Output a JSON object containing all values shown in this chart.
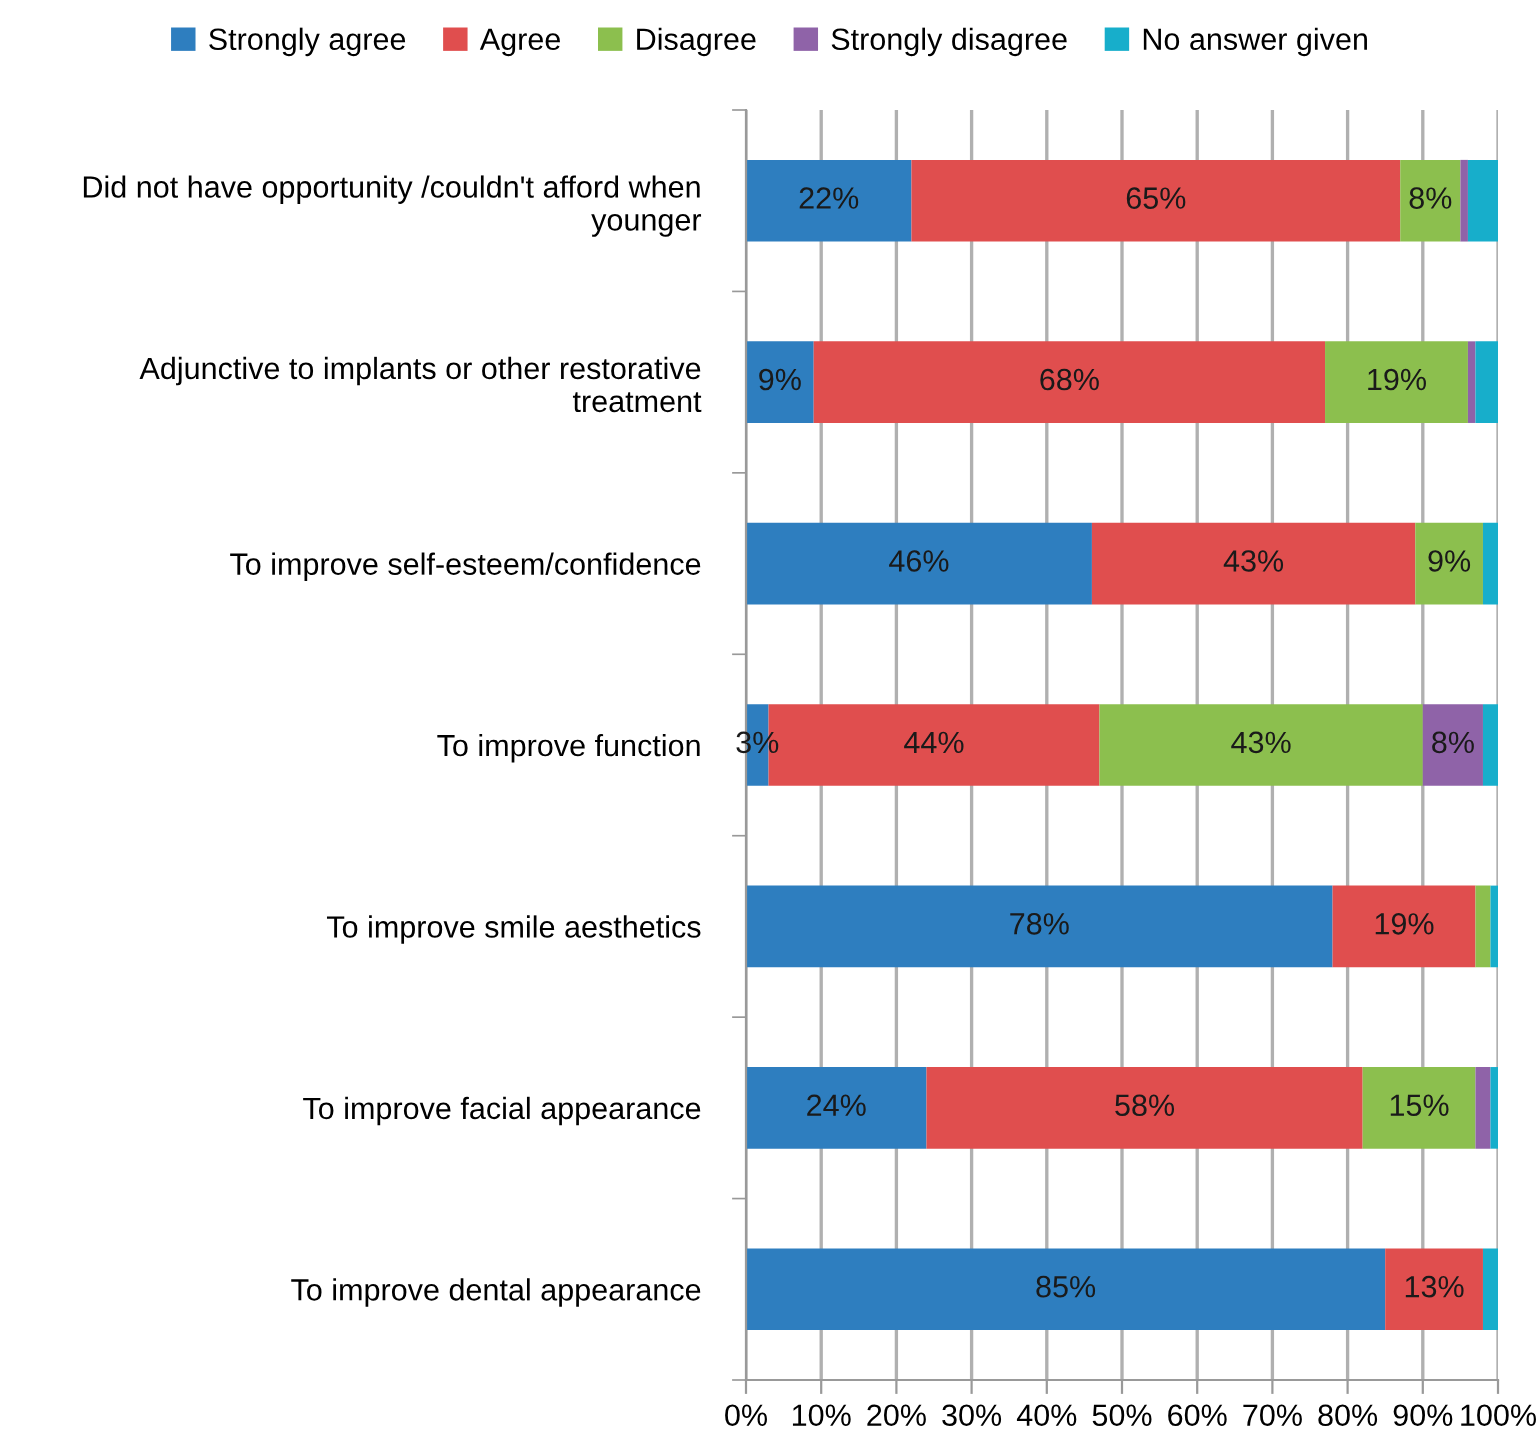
{
  "chart_data": {
    "type": "bar",
    "orientation": "horizontal",
    "stacked": true,
    "categories": [
      "Did not have opportunity /couldn't afford when younger",
      "Adjunctive to implants or other restorative treatment",
      "To improve self-esteem/confidence",
      "To improve function",
      "To improve smile aesthetics",
      "To improve facial appearance",
      "To improve dental appearance"
    ],
    "series": [
      {
        "name": "Strongly agree",
        "color": "#2e7ebf",
        "values": [
          22,
          9,
          46,
          3,
          78,
          24,
          85
        ],
        "value_labels": [
          "22%",
          "9%",
          "46%",
          "3%",
          "78%",
          "24%",
          "85%"
        ]
      },
      {
        "name": "Agree",
        "color": "#e04e4e",
        "values": [
          65,
          68,
          43,
          44,
          19,
          58,
          13
        ],
        "value_labels": [
          "65%",
          "68%",
          "43%",
          "44%",
          "19%",
          "58%",
          "13%"
        ]
      },
      {
        "name": "Disagree",
        "color": "#8cbf4e",
        "values": [
          8,
          19,
          9,
          43,
          2,
          15,
          0
        ],
        "value_labels": [
          "8%",
          "19%",
          "9%",
          "43%",
          null,
          "15%",
          null
        ]
      },
      {
        "name": "Strongly disagree",
        "color": "#8f63a8",
        "values": [
          1,
          1,
          0,
          8,
          0,
          2,
          0
        ],
        "value_labels": [
          null,
          null,
          null,
          "8%",
          null,
          null,
          null
        ]
      },
      {
        "name": "No answer given",
        "color": "#17aecb",
        "values": [
          4,
          3,
          2,
          2,
          1,
          1,
          2
        ],
        "value_labels": [
          null,
          null,
          null,
          null,
          null,
          null,
          null
        ]
      }
    ],
    "xlim": [
      0,
      100
    ],
    "xticks": [
      {
        "value": 0,
        "label": "0%"
      },
      {
        "value": 10,
        "label": "10%"
      },
      {
        "value": 20,
        "label": "20%"
      },
      {
        "value": 30,
        "label": "30%"
      },
      {
        "value": 40,
        "label": "40%"
      },
      {
        "value": 50,
        "label": "50%"
      },
      {
        "value": 60,
        "label": "60%"
      },
      {
        "value": 70,
        "label": "70%"
      },
      {
        "value": 80,
        "label": "80%"
      },
      {
        "value": 90,
        "label": "90%"
      },
      {
        "value": 100,
        "label": "100%"
      }
    ],
    "grid": "x",
    "legend": "top"
  }
}
